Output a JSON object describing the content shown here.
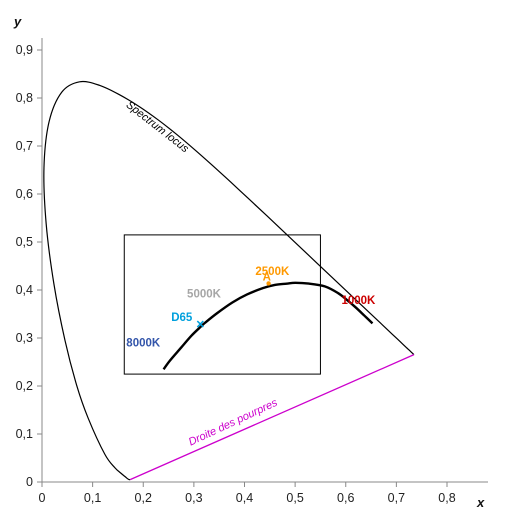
{
  "chart_data": {
    "type": "line",
    "title": "",
    "xlabel": "x",
    "ylabel": "y",
    "xlim": [
      0,
      0.8
    ],
    "ylim": [
      0,
      0.9
    ],
    "grid": false,
    "x_ticks": [
      "0",
      "0,1",
      "0,2",
      "0,3",
      "0,4",
      "0,5",
      "0,6",
      "0,7",
      "0,8"
    ],
    "y_ticks": [
      "0",
      "0,1",
      "0,2",
      "0,3",
      "0,4",
      "0,5",
      "0,6",
      "0,7",
      "0,8",
      "0,9"
    ],
    "series": [
      {
        "id": "spectrum",
        "color": "#000000",
        "points": [
          [
            0.1741,
            0.005
          ],
          [
            0.172,
            0.005
          ],
          [
            0.1689,
            0.0069
          ],
          [
            0.1644,
            0.0109
          ],
          [
            0.1566,
            0.0177
          ],
          [
            0.144,
            0.0297
          ],
          [
            0.1241,
            0.0578
          ],
          [
            0.0913,
            0.1327
          ],
          [
            0.0687,
            0.2007
          ],
          [
            0.0454,
            0.295
          ],
          [
            0.0235,
            0.4127
          ],
          [
            0.0082,
            0.5384
          ],
          [
            0.0039,
            0.6548
          ],
          [
            0.0139,
            0.7502
          ],
          [
            0.0389,
            0.812
          ],
          [
            0.0743,
            0.8338
          ],
          [
            0.1142,
            0.8262
          ],
          [
            0.1547,
            0.8059
          ],
          [
            0.1929,
            0.7816
          ],
          [
            0.2296,
            0.7543
          ],
          [
            0.2658,
            0.7243
          ],
          [
            0.3016,
            0.6923
          ],
          [
            0.3373,
            0.6589
          ],
          [
            0.3731,
            0.6245
          ],
          [
            0.4087,
            0.5896
          ],
          [
            0.4441,
            0.5547
          ],
          [
            0.4788,
            0.5202
          ],
          [
            0.5125,
            0.4866
          ],
          [
            0.5448,
            0.4544
          ],
          [
            0.5752,
            0.4242
          ],
          [
            0.6029,
            0.3965
          ],
          [
            0.627,
            0.3725
          ],
          [
            0.6482,
            0.3514
          ],
          [
            0.6658,
            0.334
          ],
          [
            0.6801,
            0.3197
          ],
          [
            0.6915,
            0.3083
          ],
          [
            0.7006,
            0.2993
          ],
          [
            0.7079,
            0.292
          ],
          [
            0.714,
            0.2859
          ],
          [
            0.719,
            0.2809
          ],
          [
            0.723,
            0.277
          ],
          [
            0.726,
            0.274
          ],
          [
            0.7283,
            0.2717
          ],
          [
            0.73,
            0.27
          ],
          [
            0.7347,
            0.2653
          ]
        ]
      },
      {
        "id": "purple-line",
        "color": "#CC00CC",
        "points": [
          [
            0.1741,
            0.005
          ],
          [
            0.7347,
            0.2653
          ]
        ]
      },
      {
        "id": "planckian",
        "color": "#000000",
        "points": [
          [
            0.2401,
            0.2348
          ],
          [
            0.2525,
            0.2527
          ],
          [
            0.274,
            0.279
          ],
          [
            0.2952,
            0.3048
          ],
          [
            0.3136,
            0.3236
          ],
          [
            0.3221,
            0.3318
          ],
          [
            0.3457,
            0.3516
          ],
          [
            0.376,
            0.374
          ],
          [
            0.405,
            0.3907
          ],
          [
            0.4369,
            0.4041
          ],
          [
            0.4599,
            0.4106
          ],
          [
            0.4829,
            0.4132
          ],
          [
            0.5001,
            0.4149
          ],
          [
            0.527,
            0.4133
          ],
          [
            0.5586,
            0.4075
          ],
          [
            0.585,
            0.3934
          ],
          [
            0.6033,
            0.3786
          ],
          [
            0.62,
            0.3634
          ],
          [
            0.6364,
            0.347
          ],
          [
            0.6528,
            0.3304
          ]
        ]
      }
    ],
    "rectangle": {
      "x": [
        0.1625,
        0.55
      ],
      "y": [
        0.2248,
        0.5148
      ]
    },
    "annotations": [
      {
        "id": "spectrum-locus",
        "text": "Spectrum locus",
        "x": 0.165,
        "y": 0.783,
        "color": "#000000",
        "italic": true
      },
      {
        "id": "purples",
        "text": "Droite des pourpres",
        "x": 0.38,
        "y": 0.118,
        "color": "#CC00CC",
        "italic": true
      },
      {
        "id": "k1000",
        "text": "1000K",
        "x": 0.625,
        "y": 0.371,
        "color": "#CC0000"
      },
      {
        "id": "k2500",
        "text": "2500K",
        "x": 0.455,
        "y": 0.431,
        "color": "#FF9900"
      },
      {
        "id": "a",
        "text": "A",
        "x": 0.4476,
        "y": 0.4074,
        "color": "#FF9900",
        "marker": "dot"
      },
      {
        "id": "k5000",
        "text": "5000K",
        "x": 0.32,
        "y": 0.384,
        "color": "#A6A6A6"
      },
      {
        "id": "d65",
        "text": "D65",
        "x": 0.3127,
        "y": 0.329,
        "color": "#00A0DD",
        "marker": "cross"
      },
      {
        "id": "k8000",
        "text": "8000K",
        "x": 0.2,
        "y": 0.282,
        "color": "#3355AA"
      }
    ]
  }
}
